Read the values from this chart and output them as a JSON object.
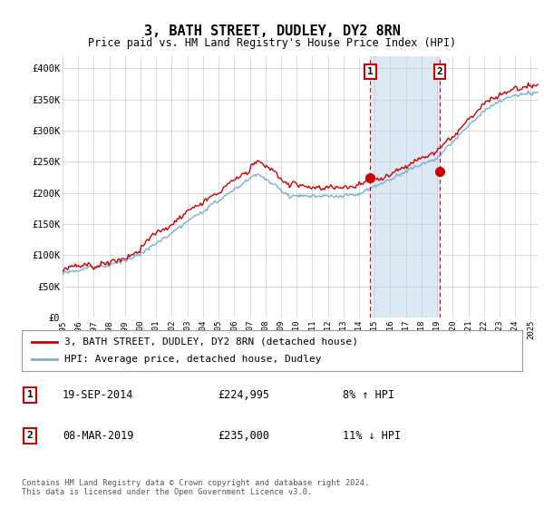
{
  "title": "3, BATH STREET, DUDLEY, DY2 8RN",
  "subtitle": "Price paid vs. HM Land Registry's House Price Index (HPI)",
  "ylim": [
    0,
    420000
  ],
  "yticks": [
    0,
    50000,
    100000,
    150000,
    200000,
    250000,
    300000,
    350000,
    400000
  ],
  "ytick_labels": [
    "£0",
    "£50K",
    "£100K",
    "£150K",
    "£200K",
    "£250K",
    "£300K",
    "£350K",
    "£400K"
  ],
  "property_color": "#cc0000",
  "hpi_line_color": "#7ab0d4",
  "shade_color": "#dce9f5",
  "marker1_date": 2014.72,
  "marker2_date": 2019.18,
  "marker1_price": 224995,
  "marker2_price": 235000,
  "legend_property": "3, BATH STREET, DUDLEY, DY2 8RN (detached house)",
  "legend_hpi": "HPI: Average price, detached house, Dudley",
  "table_rows": [
    {
      "num": "1",
      "date": "19-SEP-2014",
      "price": "£224,995",
      "hpi": "8% ↑ HPI"
    },
    {
      "num": "2",
      "date": "08-MAR-2019",
      "price": "£235,000",
      "hpi": "11% ↓ HPI"
    }
  ],
  "footer": "Contains HM Land Registry data © Crown copyright and database right 2024.\nThis data is licensed under the Open Government Licence v3.0.",
  "background_color": "#ffffff",
  "grid_color": "#cccccc"
}
